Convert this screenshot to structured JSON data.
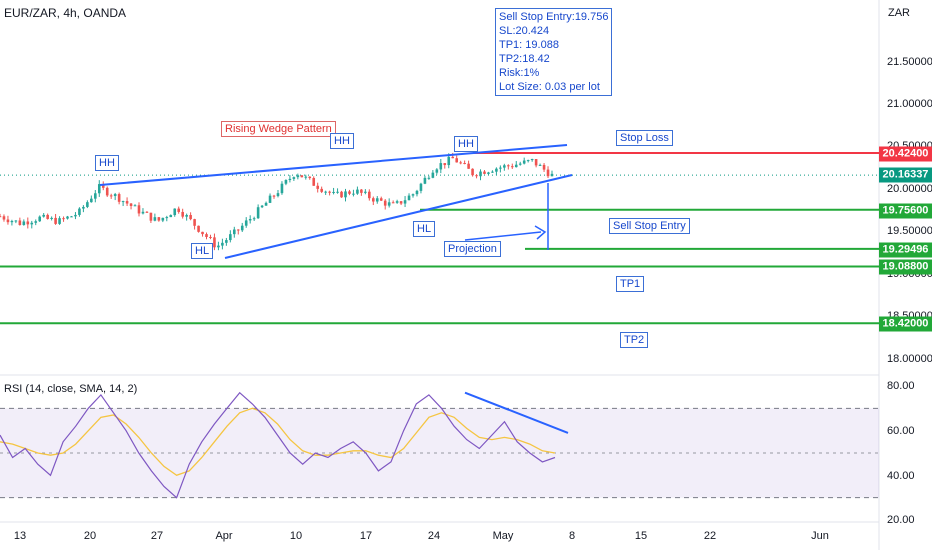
{
  "header": {
    "symbol": "EUR/ZAR, 4h, OANDA",
    "currency": "ZAR"
  },
  "info_box": {
    "lines": [
      "Sell Stop Entry:19.756",
      "SL:20.424",
      "TP1: 19.088",
      "TP2:18.42",
      "Risk:1%",
      "Lot Size: 0.03 per lot"
    ]
  },
  "annotations": {
    "pattern": "Rising Wedge Pattern",
    "hh1": "HH",
    "hh2": "HH",
    "hh3": "HH",
    "hl1": "HL",
    "hl2": "HL",
    "stop_loss": "Stop Loss",
    "sell_stop_entry": "Sell Stop Entry",
    "projection": "Projection",
    "tp1": "TP1",
    "tp2": "TP2"
  },
  "levels": [
    {
      "label": "20.42400",
      "value": 20.424,
      "color": "#f23645"
    },
    {
      "label": "20.16337",
      "value": 20.16337,
      "color": "#089981"
    },
    {
      "label": "19.75600",
      "value": 19.756,
      "color": "#22a838"
    },
    {
      "label": "19.29496",
      "value": 19.29496,
      "color": "#22a838"
    },
    {
      "label": "19.08800",
      "value": 19.088,
      "color": "#22a838"
    },
    {
      "label": "18.42000",
      "value": 18.42,
      "color": "#22a838"
    }
  ],
  "price_ticks": [
    "21.50000",
    "21.00000",
    "20.50000",
    "20.00000",
    "19.50000",
    "19.00000",
    "18.50000",
    "18.00000"
  ],
  "rsi": {
    "label": "RSI (14, close, SMA, 14, 2)",
    "ticks": [
      "80.00",
      "60.00",
      "40.00",
      "20.00"
    ],
    "upper_band": 70,
    "lower_band": 30
  },
  "x_ticks": [
    "13",
    "20",
    "27",
    "Apr",
    "10",
    "17",
    "24",
    "May",
    "8",
    "15",
    "22",
    "Jun"
  ],
  "chart_data": [
    {
      "type": "candlestick",
      "title": "EUR/ZAR, 4h, OANDA",
      "x": [
        "13",
        "20",
        "27",
        "Apr",
        "10",
        "17",
        "24",
        "May"
      ],
      "approx_close_path": [
        19.68,
        19.6,
        19.66,
        19.62,
        19.72,
        20.02,
        19.9,
        19.75,
        19.62,
        19.78,
        19.55,
        19.32,
        19.5,
        19.72,
        19.95,
        20.2,
        20.05,
        19.92,
        19.98,
        19.88,
        19.8,
        19.95,
        20.25,
        20.36,
        20.18,
        20.24,
        20.28,
        20.33,
        20.16
      ],
      "ylim": [
        17.85,
        22.1
      ],
      "levels": {
        "sl": 20.424,
        "current": 20.16337,
        "entry": 19.756,
        "projection": 19.29496,
        "tp1": 19.088,
        "tp2": 18.42
      }
    },
    {
      "type": "line",
      "title": "RSI (14, close, SMA, 14, 2)",
      "series": [
        {
          "name": "RSI",
          "values": [
            58,
            48,
            52,
            45,
            40,
            55,
            62,
            70,
            76,
            68,
            60,
            50,
            42,
            35,
            30,
            45,
            55,
            63,
            70,
            77,
            72,
            66,
            58,
            50,
            45,
            50,
            48,
            52,
            55,
            50,
            42,
            46,
            60,
            72,
            76,
            70,
            62,
            56,
            52,
            58,
            64,
            55,
            50,
            46,
            48
          ]
        },
        {
          "name": "SMA",
          "values": [
            55,
            54,
            52,
            50,
            49,
            50,
            54,
            60,
            66,
            67,
            63,
            57,
            50,
            44,
            40,
            42,
            48,
            55,
            62,
            68,
            70,
            68,
            63,
            56,
            51,
            49,
            49,
            50,
            51,
            51,
            49,
            48,
            52,
            59,
            66,
            68,
            66,
            61,
            57,
            56,
            57,
            56,
            54,
            51,
            50
          ]
        }
      ],
      "ylim": [
        20,
        80
      ],
      "bands": [
        70,
        30
      ]
    }
  ]
}
